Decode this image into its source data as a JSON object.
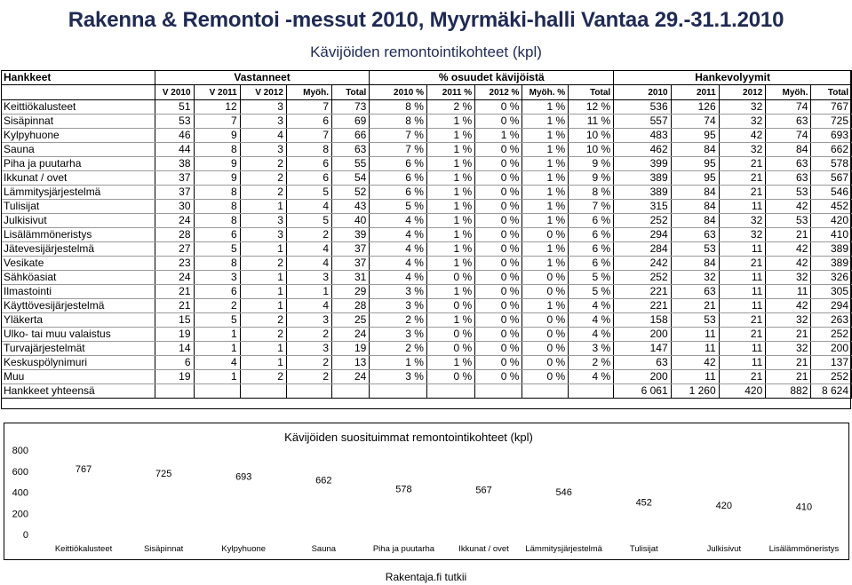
{
  "title": "Rakenna & Remontoi -messut 2010, Myyrmäki-halli Vantaa 29.-31.1.2010",
  "subtitle": "Kävijöiden remontointikohteet (kpl)",
  "table": {
    "group_headers": {
      "hankkeet": "Hankkeet",
      "vastanneet": "Vastanneet",
      "osuudet": "% osuudet kävijöistä",
      "volyymit": "Hankevolyymit"
    },
    "sub_headers": [
      "V 2010",
      "V 2011",
      "V 2012",
      "Myöh.",
      "Total",
      "2010 %",
      "2011 %",
      "2012 %",
      "Myöh. %",
      "Total",
      "2010",
      "2011",
      "2012",
      "Myöh.",
      "Total"
    ],
    "rows": [
      {
        "name": "Keittiökalusteet",
        "cells": [
          "51",
          "12",
          "3",
          "7",
          "73",
          "8 %",
          "2 %",
          "0 %",
          "1 %",
          "12 %",
          "536",
          "126",
          "32",
          "74",
          "767"
        ]
      },
      {
        "name": "Sisäpinnat",
        "cells": [
          "53",
          "7",
          "3",
          "6",
          "69",
          "8 %",
          "1 %",
          "0 %",
          "1 %",
          "11 %",
          "557",
          "74",
          "32",
          "63",
          "725"
        ]
      },
      {
        "name": "Kylpyhuone",
        "cells": [
          "46",
          "9",
          "4",
          "7",
          "66",
          "7 %",
          "1 %",
          "1 %",
          "1 %",
          "10 %",
          "483",
          "95",
          "42",
          "74",
          "693"
        ]
      },
      {
        "name": "Sauna",
        "cells": [
          "44",
          "8",
          "3",
          "8",
          "63",
          "7 %",
          "1 %",
          "0 %",
          "1 %",
          "10 %",
          "462",
          "84",
          "32",
          "84",
          "662"
        ]
      },
      {
        "name": "Piha ja puutarha",
        "cells": [
          "38",
          "9",
          "2",
          "6",
          "55",
          "6 %",
          "1 %",
          "0 %",
          "1 %",
          "9 %",
          "399",
          "95",
          "21",
          "63",
          "578"
        ]
      },
      {
        "name": "Ikkunat / ovet",
        "cells": [
          "37",
          "9",
          "2",
          "6",
          "54",
          "6 %",
          "1 %",
          "0 %",
          "1 %",
          "9 %",
          "389",
          "95",
          "21",
          "63",
          "567"
        ]
      },
      {
        "name": "Lämmitysjärjestelmä",
        "cells": [
          "37",
          "8",
          "2",
          "5",
          "52",
          "6 %",
          "1 %",
          "0 %",
          "1 %",
          "8 %",
          "389",
          "84",
          "21",
          "53",
          "546"
        ]
      },
      {
        "name": "Tulisijat",
        "cells": [
          "30",
          "8",
          "1",
          "4",
          "43",
          "5 %",
          "1 %",
          "0 %",
          "1 %",
          "7 %",
          "315",
          "84",
          "11",
          "42",
          "452"
        ]
      },
      {
        "name": "Julkisivut",
        "cells": [
          "24",
          "8",
          "3",
          "5",
          "40",
          "4 %",
          "1 %",
          "0 %",
          "1 %",
          "6 %",
          "252",
          "84",
          "32",
          "53",
          "420"
        ]
      },
      {
        "name": "Lisälämmöneristys",
        "cells": [
          "28",
          "6",
          "3",
          "2",
          "39",
          "4 %",
          "1 %",
          "0 %",
          "0 %",
          "6 %",
          "294",
          "63",
          "32",
          "21",
          "410"
        ]
      },
      {
        "name": "Jätevesijärjestelmä",
        "cells": [
          "27",
          "5",
          "1",
          "4",
          "37",
          "4 %",
          "1 %",
          "0 %",
          "1 %",
          "6 %",
          "284",
          "53",
          "11",
          "42",
          "389"
        ]
      },
      {
        "name": "Vesikate",
        "cells": [
          "23",
          "8",
          "2",
          "4",
          "37",
          "4 %",
          "1 %",
          "0 %",
          "1 %",
          "6 %",
          "242",
          "84",
          "21",
          "42",
          "389"
        ]
      },
      {
        "name": "Sähköasiat",
        "cells": [
          "24",
          "3",
          "1",
          "3",
          "31",
          "4 %",
          "0 %",
          "0 %",
          "0 %",
          "5 %",
          "252",
          "32",
          "11",
          "32",
          "326"
        ]
      },
      {
        "name": "Ilmastointi",
        "cells": [
          "21",
          "6",
          "1",
          "1",
          "29",
          "3 %",
          "1 %",
          "0 %",
          "0 %",
          "5 %",
          "221",
          "63",
          "11",
          "11",
          "305"
        ]
      },
      {
        "name": "Käyttövesijärjestelmä",
        "cells": [
          "21",
          "2",
          "1",
          "4",
          "28",
          "3 %",
          "0 %",
          "0 %",
          "1 %",
          "4 %",
          "221",
          "21",
          "11",
          "42",
          "294"
        ]
      },
      {
        "name": "Yläkerta",
        "cells": [
          "15",
          "5",
          "2",
          "3",
          "25",
          "2 %",
          "1 %",
          "0 %",
          "0 %",
          "4 %",
          "158",
          "53",
          "21",
          "32",
          "263"
        ]
      },
      {
        "name": "Ulko- tai muu valaistus",
        "cells": [
          "19",
          "1",
          "2",
          "2",
          "24",
          "3 %",
          "0 %",
          "0 %",
          "0 %",
          "4 %",
          "200",
          "11",
          "21",
          "21",
          "252"
        ]
      },
      {
        "name": "Turvajärjestelmät",
        "cells": [
          "14",
          "1",
          "1",
          "3",
          "19",
          "2 %",
          "0 %",
          "0 %",
          "0 %",
          "3 %",
          "147",
          "11",
          "11",
          "32",
          "200"
        ]
      },
      {
        "name": "Keskuspölynimuri",
        "cells": [
          "6",
          "4",
          "1",
          "2",
          "13",
          "1 %",
          "1 %",
          "0 %",
          "0 %",
          "2 %",
          "63",
          "42",
          "11",
          "21",
          "137"
        ]
      },
      {
        "name": "Muu",
        "cells": [
          "19",
          "1",
          "2",
          "2",
          "24",
          "3 %",
          "0 %",
          "0 %",
          "0 %",
          "4 %",
          "200",
          "11",
          "21",
          "21",
          "252"
        ]
      },
      {
        "name": "Hankkeet yhteensä",
        "cells": [
          "",
          "",
          "",
          "",
          "",
          "",
          "",
          "",
          "",
          "",
          "6 061",
          "1 260",
          "420",
          "882",
          "8 624"
        ]
      }
    ]
  },
  "chart_data": {
    "type": "bar",
    "title": "Kävijöiden suosituimmat remontointikohteet (kpl)",
    "categories": [
      "Keittiökalusteet",
      "Sisäpinnat",
      "Kylpyhuone",
      "Sauna",
      "Piha ja puutarha",
      "Ikkunat / ovet",
      "Lämmitysjärjestelmä",
      "Tulisijat",
      "Julkisivut",
      "Lisälämmöneristys"
    ],
    "values": [
      767,
      725,
      693,
      662,
      578,
      567,
      546,
      452,
      420,
      410
    ],
    "yticks": [
      "0",
      "200",
      "400",
      "600",
      "800"
    ],
    "ylim": [
      0,
      800
    ],
    "grid": false,
    "bar_color": "#ffffff"
  },
  "footer": "Rakentaja.fi tutkii"
}
